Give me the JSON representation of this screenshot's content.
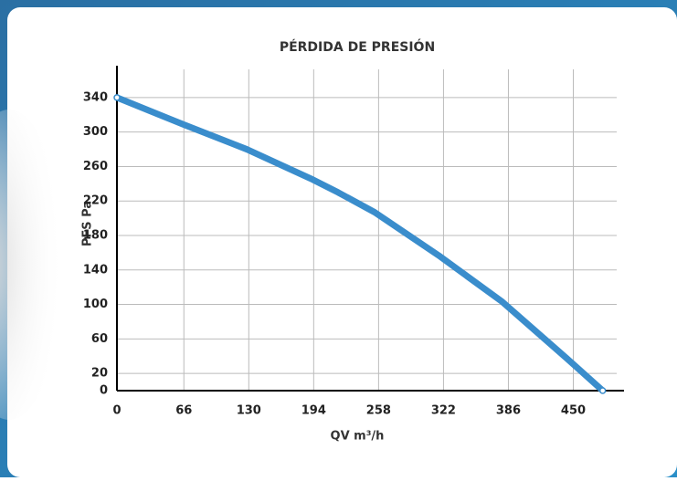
{
  "chart_data": {
    "type": "line",
    "title": "PÉRDIDA DE PRESIÓN",
    "x_label": "QV m³/h",
    "y_label": "PFS Pa",
    "x": [
      0,
      65,
      128,
      191,
      218,
      254,
      317,
      380,
      443,
      479
    ],
    "series": [
      {
        "color": "#3a8dcc",
        "values": [
          340,
          309,
          280,
          246,
          230,
          207,
          157,
          103,
          38,
          0
        ]
      }
    ],
    "xlim": [
      0,
      500
    ],
    "ylim": [
      0,
      360
    ],
    "xticks": [
      0,
      66,
      130,
      194,
      258,
      322,
      386,
      450
    ],
    "yticks": [
      0,
      20,
      60,
      100,
      140,
      180,
      220,
      260,
      300,
      340
    ],
    "grid": true
  }
}
